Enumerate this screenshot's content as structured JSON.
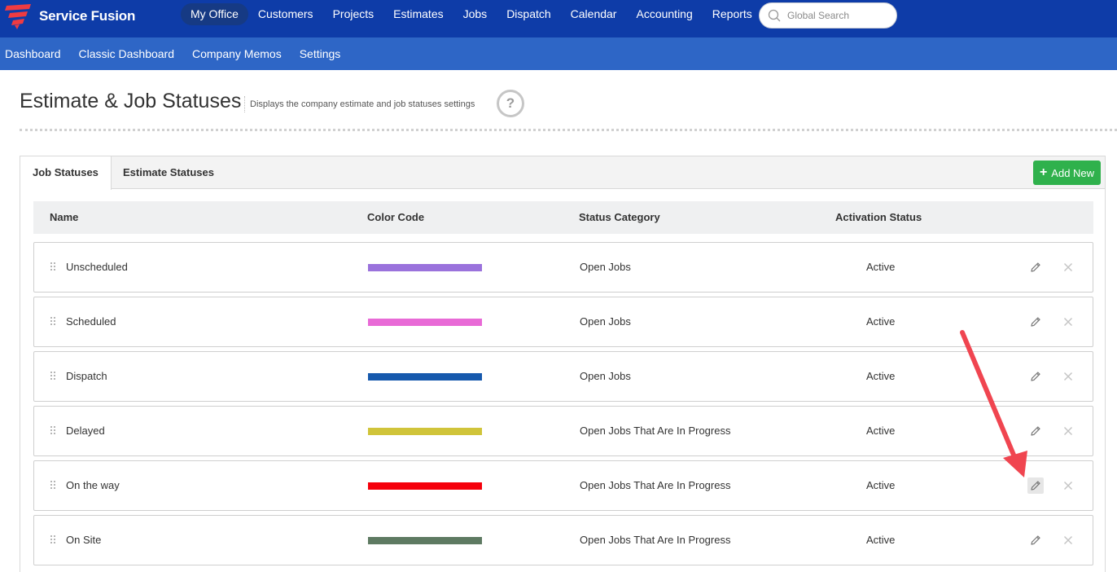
{
  "app": {
    "name": "Service Fusion"
  },
  "top_nav": {
    "items": [
      "My Office",
      "Customers",
      "Projects",
      "Estimates",
      "Jobs",
      "Dispatch",
      "Calendar",
      "Accounting",
      "Reports"
    ],
    "active": "My Office"
  },
  "search": {
    "placeholder": "Global Search"
  },
  "sub_nav": {
    "items": [
      "Dashboard",
      "Classic Dashboard",
      "Company Memos",
      "Settings"
    ]
  },
  "page": {
    "title": "Estimate & Job Statuses",
    "subtitle": "Displays the company estimate and job statuses settings",
    "help": "?"
  },
  "tabs": {
    "job": "Job Statuses",
    "estimate": "Estimate Statuses",
    "active": "job"
  },
  "add_button": {
    "label": "Add New"
  },
  "table": {
    "headers": {
      "name": "Name",
      "color": "Color Code",
      "category": "Status Category",
      "activation": "Activation Status"
    },
    "rows": [
      {
        "name": "Unscheduled",
        "color": "#9a72dc",
        "category": "Open Jobs",
        "activation": "Active"
      },
      {
        "name": "Scheduled",
        "color": "#e86ad6",
        "category": "Open Jobs",
        "activation": "Active"
      },
      {
        "name": "Dispatch",
        "color": "#1659ad",
        "category": "Open Jobs",
        "activation": "Active"
      },
      {
        "name": "Delayed",
        "color": "#d0c43a",
        "category": "Open Jobs That Are In Progress",
        "activation": "Active"
      },
      {
        "name": "On the way",
        "color": "#f5000b",
        "category": "Open Jobs That Are In Progress",
        "activation": "Active"
      },
      {
        "name": "On Site",
        "color": "#5e7a62",
        "category": "Open Jobs That Are In Progress",
        "activation": "Active"
      }
    ]
  },
  "colors": {
    "topbar": "#0e3ca8",
    "subnav": "#2e66c6",
    "add_button": "#2fb14c",
    "annotation_arrow": "#f04550",
    "logo": "#ef3b42"
  },
  "icons": {
    "edit": "pencil-icon",
    "delete": "close-icon",
    "search": "search-icon",
    "drag": "drag-handle-icon"
  }
}
